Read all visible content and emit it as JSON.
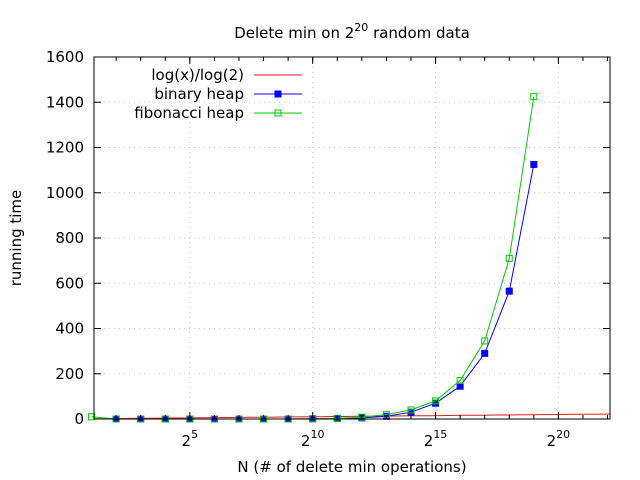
{
  "chart_data": {
    "type": "line",
    "title": {
      "prefix": "Delete min on 2",
      "superscript": "20",
      "suffix": " random data"
    },
    "xlabel": "N (# of delete min operations)",
    "ylabel": "running time",
    "x_scale": "log2",
    "xlim_exponent": [
      1.1,
      22.1
    ],
    "ylim": [
      0,
      1600
    ],
    "x_ticks": [
      {
        "base": "2",
        "exponent": "5",
        "value_exponent": 5
      },
      {
        "base": "2",
        "exponent": "10",
        "value_exponent": 10
      },
      {
        "base": "2",
        "exponent": "15",
        "value_exponent": 15
      },
      {
        "base": "2",
        "exponent": "20",
        "value_exponent": 20
      }
    ],
    "y_ticks": [
      0,
      200,
      400,
      600,
      800,
      1000,
      1200,
      1400,
      1600
    ],
    "grid": true,
    "legend_position": "top-left",
    "series": [
      {
        "name": "log(x)/log(2)",
        "color": "#e41a1c",
        "marker": "none",
        "function": "log2",
        "x_exponent_range": [
          1.1,
          22.1
        ]
      },
      {
        "name": "binary heap",
        "color": "#0000ff",
        "marker": "filled-square",
        "x_exponents": [
          2,
          3,
          4,
          5,
          6,
          7,
          8,
          9,
          10,
          11,
          12,
          13,
          14,
          15,
          16,
          17,
          18,
          19
        ],
        "values": [
          0,
          0,
          0,
          0,
          0,
          0,
          0,
          0,
          1,
          2,
          5,
          12,
          30,
          70,
          145,
          290,
          565,
          1125
        ]
      },
      {
        "name": "fibonacci heap",
        "color": "#00cc00",
        "marker": "open-square",
        "x_exponents": [
          1,
          2,
          3,
          4,
          5,
          6,
          7,
          8,
          9,
          10,
          11,
          12,
          13,
          14,
          15,
          16,
          17,
          18,
          19
        ],
        "values": [
          10,
          0,
          0,
          0,
          0,
          0,
          0,
          0,
          0,
          1,
          3,
          8,
          20,
          40,
          80,
          170,
          345,
          710,
          1425
        ]
      }
    ]
  }
}
